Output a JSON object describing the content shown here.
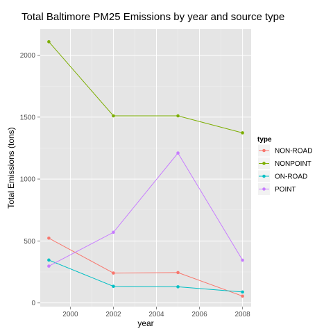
{
  "chart_data": {
    "type": "line",
    "title": "Total Baltimore PM25 Emissions by year and source type",
    "xlabel": "year",
    "ylabel": "Total Emissions (tons)",
    "x": [
      1999,
      2002,
      2005,
      2008
    ],
    "xlim": [
      1998.6,
      2008.4
    ],
    "ylim": [
      -30,
      2210
    ],
    "xticks": [
      2000,
      2002,
      2004,
      2006,
      2008
    ],
    "yticks": [
      0,
      500,
      1000,
      1500,
      2000
    ],
    "grid": true,
    "legend": {
      "title": "type",
      "position": "right"
    },
    "series": [
      {
        "name": "NON-ROAD",
        "color": "#F8766D",
        "values": [
          523,
          241,
          245,
          55
        ]
      },
      {
        "name": "NONPOINT",
        "color": "#7CAE00",
        "values": [
          2108,
          1510,
          1510,
          1373
        ]
      },
      {
        "name": "ON-ROAD",
        "color": "#00BFC4",
        "values": [
          346,
          134,
          130,
          88
        ]
      },
      {
        "name": "POINT",
        "color": "#C77CFF",
        "values": [
          297,
          570,
          1210,
          345
        ]
      }
    ]
  }
}
